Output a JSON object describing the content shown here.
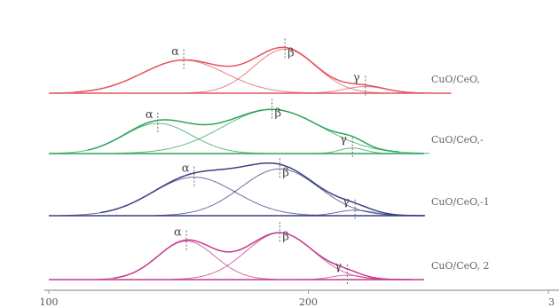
{
  "chart_data": {
    "type": "line",
    "title": "",
    "xlabel": "",
    "ylabel": "",
    "xlim": [
      100,
      300
    ],
    "x_ticks": [
      "100",
      "200",
      "3"
    ],
    "series": [
      {
        "name": "CuO/CeO,",
        "color": "#e0555f",
        "peaks": [
          {
            "label": "α",
            "center": 152,
            "height": 0.6,
            "width": 16
          },
          {
            "label": "β",
            "center": 191,
            "height": 0.8,
            "width": 12
          },
          {
            "label": "γ",
            "center": 222,
            "height": 0.12,
            "width": 8
          }
        ]
      },
      {
        "name": "CuO/CeO,-",
        "color": "#2aa35a",
        "peaks": [
          {
            "label": "α",
            "center": 142,
            "height": 0.55,
            "width": 13
          },
          {
            "label": "β",
            "center": 186,
            "height": 0.8,
            "width": 19
          },
          {
            "label": "γ",
            "center": 217,
            "height": 0.1,
            "width": 5
          }
        ]
      },
      {
        "name": "CuO/CeO,-1",
        "color": "#3a3f80",
        "peaks": [
          {
            "label": "α",
            "center": 156,
            "height": 0.7,
            "width": 16
          },
          {
            "label": "β",
            "center": 189,
            "height": 0.85,
            "width": 15
          },
          {
            "label": "γ",
            "center": 218,
            "height": 0.1,
            "width": 7
          }
        ]
      },
      {
        "name": "CuO/CeO, 2",
        "color": "#c43a8a",
        "peaks": [
          {
            "label": "α",
            "center": 153,
            "height": 0.7,
            "width": 11
          },
          {
            "label": "β",
            "center": 189,
            "height": 0.85,
            "width": 13
          },
          {
            "label": "γ",
            "center": 215,
            "height": 0.08,
            "width": 6
          }
        ]
      }
    ]
  }
}
